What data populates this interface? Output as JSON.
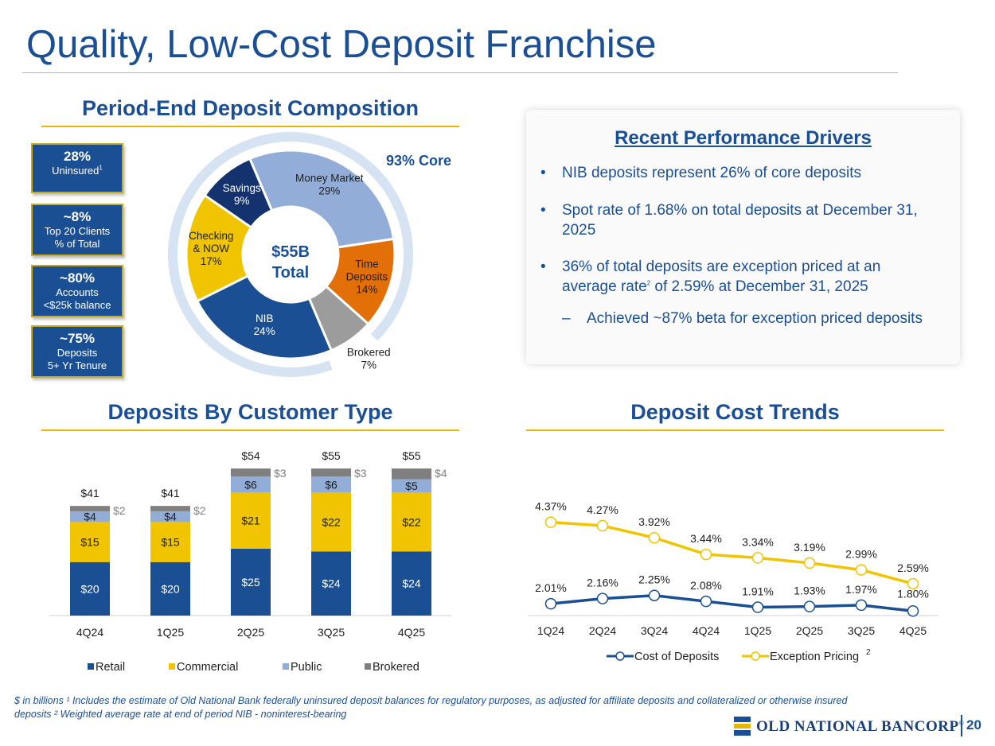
{
  "title": "Quality, Low-Cost Deposit Franchise",
  "composition": {
    "title": "Period-End Deposit Composition",
    "stats": [
      {
        "value": "28%",
        "label": "Uninsured",
        "sup": "1"
      },
      {
        "value": "~8%",
        "label": "Top 20 Clients",
        "label2": "% of Total"
      },
      {
        "value": "~80%",
        "label": "Accounts",
        "label2": "<$25k balance"
      },
      {
        "value": "~75%",
        "label": "Deposits",
        "label2": "5+ Yr Tenure"
      }
    ],
    "core_label": "93% Core",
    "center_label": "$55B",
    "center_label2": "Total"
  },
  "drivers": {
    "title": "Recent Performance Drivers",
    "bullet_char": "•",
    "dash_char": "–",
    "bullets": [
      {
        "line1": "NIB deposits represent 26% of core deposits"
      },
      {
        "line1": "Spot rate of 1.68% on total deposits at December 31,",
        "line2": "2025"
      },
      {
        "line1": "36% of total deposits are exception priced at an",
        "line2a": "average rate",
        "sup": "2",
        "line2b": " of 2.59% at December 31, 2025"
      }
    ],
    "sub_bullet": "Achieved ~87% beta for exception priced deposits"
  },
  "customer": {
    "title": "Deposits By Customer Type"
  },
  "cost": {
    "title": "Deposit Cost Trends",
    "legend_sup": "2"
  },
  "chart_data": [
    {
      "type": "pie",
      "name": "Period-End Deposit Composition",
      "slices": [
        {
          "label": "Money Market",
          "label_lines": [
            "Money Market",
            "29%"
          ],
          "value": 29,
          "color": "#92aed8"
        },
        {
          "label": "Time Deposits",
          "label_lines": [
            "Time",
            "Deposits",
            "14%"
          ],
          "value": 14,
          "color": "#e26f08"
        },
        {
          "label": "Brokered",
          "label_lines": [
            "Brokered",
            "7%"
          ],
          "value": 7,
          "color": "#9c9c9c"
        },
        {
          "label": "NIB",
          "label_lines": [
            "NIB",
            "24%"
          ],
          "value": 24,
          "color": "#1b4f93"
        },
        {
          "label": "Checking & NOW",
          "label_lines": [
            "Checking",
            "& NOW",
            "17%"
          ],
          "value": 17,
          "color": "#f0c400"
        },
        {
          "label": "Savings",
          "label_lines": [
            "Savings",
            "9%"
          ],
          "value": 9,
          "color": "#14336e"
        }
      ]
    },
    {
      "type": "bar",
      "stacked": true,
      "name": "Deposits By Customer Type",
      "categories": [
        "4Q24",
        "1Q25",
        "2Q25",
        "3Q25",
        "4Q25"
      ],
      "series": [
        {
          "name": "Retail",
          "values": [
            20,
            20,
            25,
            24,
            24
          ],
          "labels": [
            "$20",
            "$20",
            "$25",
            "$24",
            "$24"
          ],
          "color": "#1b4f93"
        },
        {
          "name": "Commercial",
          "values": [
            15,
            15,
            21,
            22,
            22
          ],
          "labels": [
            "$15",
            "$15",
            "$21",
            "$22",
            "$22"
          ],
          "color": "#f0c400"
        },
        {
          "name": "Public",
          "values": [
            4,
            4,
            6,
            6,
            5
          ],
          "labels": [
            "$4",
            "$4",
            "$6",
            "$6",
            "$5"
          ],
          "color": "#92aed8"
        },
        {
          "name": "Brokered",
          "values": [
            2,
            2,
            3,
            3,
            4
          ],
          "labels": [
            "$2",
            "$2",
            "$3",
            "$3",
            "$4"
          ],
          "color": "#7f7f7f"
        }
      ],
      "totals": [
        "$41",
        "$41",
        "$54",
        "$55",
        "$55"
      ],
      "ylim": [
        0,
        58
      ],
      "legend_position": "bottom"
    },
    {
      "type": "line",
      "name": "Deposit Cost Trends",
      "x": [
        "1Q24",
        "2Q24",
        "3Q24",
        "4Q24",
        "1Q25",
        "2Q25",
        "3Q25",
        "4Q25"
      ],
      "series": [
        {
          "name": "Cost of Deposits",
          "values": [
            2.01,
            2.16,
            2.25,
            2.08,
            1.91,
            1.93,
            1.97,
            1.8
          ],
          "labels": [
            "2.01%",
            "2.16%",
            "2.25%",
            "2.08%",
            "1.91%",
            "1.93%",
            "1.97%",
            "1.80%"
          ],
          "color": "#1b4f93"
        },
        {
          "name": "Exception Pricing",
          "values": [
            4.37,
            4.27,
            3.92,
            3.44,
            3.34,
            3.19,
            2.99,
            2.59
          ],
          "labels": [
            "4.37%",
            "4.27%",
            "3.92%",
            "3.44%",
            "3.34%",
            "3.19%",
            "2.99%",
            "2.59%"
          ],
          "color": "#f0c400"
        }
      ],
      "ylim": [
        1.3,
        4.8
      ],
      "legend_position": "bottom"
    }
  ],
  "footnote": {
    "line1": "$ in billions   ¹ Includes the estimate of Old National Bank federally uninsured deposit balances for regulatory purposes, as adjusted for affiliate deposits and collateralized or otherwise insured",
    "line2": "deposits   ² Weighted average rate at end of period   NIB - noninterest-bearing"
  },
  "logo_text": "OLD NATIONAL BANCORP",
  "logo_mark": "®",
  "page_number": "20"
}
